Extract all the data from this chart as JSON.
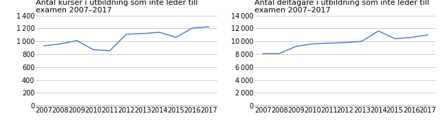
{
  "years": [
    2007,
    2008,
    2009,
    2010,
    2011,
    2012,
    2013,
    2014,
    2015,
    2016,
    2017
  ],
  "kurser": [
    930,
    960,
    1010,
    870,
    855,
    1110,
    1120,
    1140,
    1060,
    1205,
    1225
  ],
  "deltagare": [
    8100,
    8100,
    9200,
    9600,
    9700,
    9800,
    10000,
    11600,
    10400,
    10600,
    11000
  ],
  "title1": "Antal kurser i utbildning som inte leder till\nexamen 2007–2017",
  "title2": "Antal deltagare i utbildning som inte leder till\nexamen 2007–2017",
  "line_color": "#4472c4",
  "yticks1": [
    0,
    200,
    400,
    600,
    800,
    1000,
    1200,
    1400
  ],
  "yticks2": [
    0,
    2000,
    4000,
    6000,
    8000,
    10000,
    12000,
    14000
  ],
  "ylim1": [
    0,
    1400
  ],
  "ylim2": [
    0,
    14000
  ],
  "bg_color": "#ffffff",
  "title_fontsize": 8.0,
  "tick_fontsize": 7.0
}
